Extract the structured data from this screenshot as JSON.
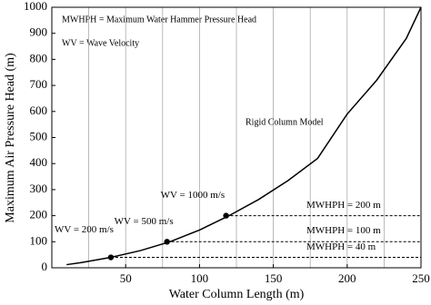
{
  "chart_data": {
    "type": "line",
    "x_label": "Water Column Length (m)",
    "y_label": "Maximum Air Pressure Head (m)",
    "xlim": [
      0,
      250
    ],
    "ylim": [
      0,
      1000
    ],
    "xticks": [
      50,
      100,
      150,
      200,
      250
    ],
    "yticks": [
      0,
      100,
      200,
      300,
      400,
      500,
      600,
      700,
      800,
      900,
      1000
    ],
    "xgrid": [
      25,
      50,
      75,
      100,
      125,
      150,
      175,
      200,
      225
    ],
    "series": [
      {
        "name": "Rigid Column Model",
        "color": "#000000",
        "x": [
          10,
          20,
          40,
          60,
          80,
          100,
          120,
          140,
          160,
          180,
          200,
          220,
          240,
          250
        ],
        "values": [
          12,
          20,
          40,
          66,
          100,
          145,
          200,
          262,
          335,
          420,
          590,
          720,
          880,
          1000
        ]
      }
    ],
    "points": {
      "x": [
        40,
        78,
        118
      ],
      "values": [
        40,
        100,
        200
      ],
      "labels": [
        "WV = 200 m/s",
        "WV = 500 m/s",
        "WV = 1000 m/s"
      ],
      "dashed_labels": [
        "MWHPH = 40 m",
        "MWHPH = 100 m",
        "MWHPH = 200 m"
      ]
    },
    "notes": [
      "MWHPH = Maximum Water Hammer Pressure Head",
      "WV = Wave Velocity"
    ]
  }
}
